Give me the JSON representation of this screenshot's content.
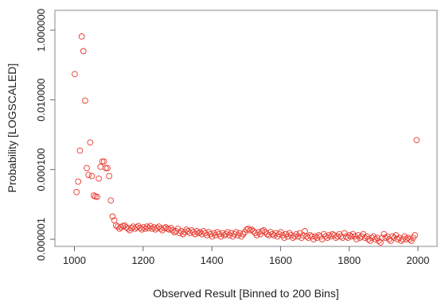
{
  "chart_data": {
    "type": "scatter",
    "title": "",
    "xlabel": "Observed Result [Binned to 200 Bins]",
    "ylabel": "Probability [LOGSCALED]",
    "y_scale": "log",
    "xlim": [
      975,
      2010
    ],
    "ylim": [
      7e-07,
      2.0
    ],
    "grid": false,
    "legend": "none",
    "point_color": "#e8382c",
    "marker": "open-circle",
    "x_ticks": [
      1000,
      1200,
      1400,
      1600,
      1800,
      2000
    ],
    "x_tick_labels": [
      "1000",
      "1200",
      "1400",
      "1600",
      "1800",
      "2000"
    ],
    "y_ticks": [
      1e-06,
      0.0001,
      0.01,
      1
    ],
    "y_tick_labels": [
      "0.000001",
      "0.000100",
      "0.010000",
      "1.000000"
    ],
    "points": [
      [
        1001,
        0.055
      ],
      [
        1006,
        2.25e-05
      ],
      [
        1011,
        4.5e-05
      ],
      [
        1016,
        0.00035
      ],
      [
        1021,
        0.66
      ],
      [
        1026,
        0.25
      ],
      [
        1031,
        0.0095
      ],
      [
        1036,
        0.00011
      ],
      [
        1041,
        7e-05
      ],
      [
        1046,
        0.0006
      ],
      [
        1051,
        6.5e-05
      ],
      [
        1056,
        1.8e-05
      ],
      [
        1061,
        1.7e-05
      ],
      [
        1066,
        1.65e-05
      ],
      [
        1071,
        5.5e-05
      ],
      [
        1076,
        0.00012
      ],
      [
        1081,
        0.00017
      ],
      [
        1086,
        0.00017
      ],
      [
        1091,
        0.00011
      ],
      [
        1096,
        0.00011
      ],
      [
        1101,
        6.5e-05
      ],
      [
        1106,
        1.3e-05
      ],
      [
        1111,
        4.5e-06
      ],
      [
        1116,
        3.5e-06
      ],
      [
        1121,
        2.5e-06
      ],
      [
        1126,
        2.3e-06
      ],
      [
        1131,
        2e-06
      ],
      [
        1136,
        2.2e-06
      ],
      [
        1141,
        2.4e-06
      ],
      [
        1146,
        2.5e-06
      ],
      [
        1151,
        2.2e-06
      ],
      [
        1156,
        2e-06
      ],
      [
        1161,
        1.8e-06
      ],
      [
        1166,
        2.1e-06
      ],
      [
        1171,
        2.3e-06
      ],
      [
        1176,
        2e-06
      ],
      [
        1181,
        2.2e-06
      ],
      [
        1186,
        2.4e-06
      ],
      [
        1191,
        2.1e-06
      ],
      [
        1196,
        1.9e-06
      ],
      [
        1201,
        2.2e-06
      ],
      [
        1206,
        2e-06
      ],
      [
        1211,
        2.3e-06
      ],
      [
        1216,
        2.1e-06
      ],
      [
        1221,
        2.4e-06
      ],
      [
        1226,
        2e-06
      ],
      [
        1231,
        2.2e-06
      ],
      [
        1236,
        1.9e-06
      ],
      [
        1241,
        2.1e-06
      ],
      [
        1246,
        2.3e-06
      ],
      [
        1251,
        2e-06
      ],
      [
        1256,
        1.8e-06
      ],
      [
        1261,
        2.1e-06
      ],
      [
        1266,
        2.2e-06
      ],
      [
        1271,
        2e-06
      ],
      [
        1276,
        1.9e-06
      ],
      [
        1281,
        2.1e-06
      ],
      [
        1286,
        1.8e-06
      ],
      [
        1291,
        1.6e-06
      ],
      [
        1296,
        1.7e-06
      ],
      [
        1301,
        2e-06
      ],
      [
        1306,
        1.5e-06
      ],
      [
        1311,
        1.7e-06
      ],
      [
        1316,
        1.4e-06
      ],
      [
        1321,
        1.6e-06
      ],
      [
        1326,
        1.9e-06
      ],
      [
        1331,
        1.7e-06
      ],
      [
        1336,
        1.5e-06
      ],
      [
        1341,
        1.8e-06
      ],
      [
        1346,
        1.6e-06
      ],
      [
        1351,
        1.4e-06
      ],
      [
        1356,
        1.7e-06
      ],
      [
        1361,
        1.5e-06
      ],
      [
        1366,
        1.6e-06
      ],
      [
        1371,
        1.4e-06
      ],
      [
        1376,
        1.7e-06
      ],
      [
        1381,
        1.5e-06
      ],
      [
        1386,
        1.3e-06
      ],
      [
        1391,
        1.6e-06
      ],
      [
        1396,
        1.4e-06
      ],
      [
        1401,
        1.2e-06
      ],
      [
        1406,
        1.5e-06
      ],
      [
        1411,
        1.3e-06
      ],
      [
        1416,
        1.6e-06
      ],
      [
        1421,
        1.4e-06
      ],
      [
        1426,
        1.2e-06
      ],
      [
        1431,
        1.5e-06
      ],
      [
        1436,
        1.3e-06
      ],
      [
        1441,
        1.4e-06
      ],
      [
        1446,
        1.6e-06
      ],
      [
        1451,
        1.3e-06
      ],
      [
        1456,
        1.5e-06
      ],
      [
        1461,
        1.2e-06
      ],
      [
        1466,
        1.4e-06
      ],
      [
        1471,
        1.6e-06
      ],
      [
        1476,
        1.3e-06
      ],
      [
        1481,
        1.5e-06
      ],
      [
        1486,
        1.2e-06
      ],
      [
        1491,
        1.4e-06
      ],
      [
        1496,
        1.6e-06
      ],
      [
        1501,
        1.9e-06
      ],
      [
        1506,
        2e-06
      ],
      [
        1511,
        1.8e-06
      ],
      [
        1516,
        1.9e-06
      ],
      [
        1521,
        1.7e-06
      ],
      [
        1526,
        1.5e-06
      ],
      [
        1531,
        1.3e-06
      ],
      [
        1536,
        1.6e-06
      ],
      [
        1541,
        1.4e-06
      ],
      [
        1546,
        1.7e-06
      ],
      [
        1551,
        1.8e-06
      ],
      [
        1556,
        1.6e-06
      ],
      [
        1561,
        1.4e-06
      ],
      [
        1566,
        1.3e-06
      ],
      [
        1571,
        1.6e-06
      ],
      [
        1576,
        1.4e-06
      ],
      [
        1581,
        1.3e-06
      ],
      [
        1586,
        1.5e-06
      ],
      [
        1591,
        1.2e-06
      ],
      [
        1596,
        1.4e-06
      ],
      [
        1601,
        1.6e-06
      ],
      [
        1606,
        1.3e-06
      ],
      [
        1611,
        1.1e-06
      ],
      [
        1616,
        1.4e-06
      ],
      [
        1621,
        1.2e-06
      ],
      [
        1626,
        1.5e-06
      ],
      [
        1631,
        1.3e-06
      ],
      [
        1636,
        1.1e-06
      ],
      [
        1641,
        1.2e-06
      ],
      [
        1646,
        1.4e-06
      ],
      [
        1651,
        1.2e-06
      ],
      [
        1656,
        1.5e-06
      ],
      [
        1661,
        1.1e-06
      ],
      [
        1666,
        1.3e-06
      ],
      [
        1671,
        1.7e-06
      ],
      [
        1676,
        1.2e-06
      ],
      [
        1681,
        1.1e-06
      ],
      [
        1686,
        1.3e-06
      ],
      [
        1691,
        1.2e-06
      ],
      [
        1696,
        1e-06
      ],
      [
        1701,
        1.2e-06
      ],
      [
        1706,
        1.1e-06
      ],
      [
        1711,
        1.3e-06
      ],
      [
        1716,
        1.2e-06
      ],
      [
        1721,
        1e-06
      ],
      [
        1726,
        1.4e-06
      ],
      [
        1731,
        1.2e-06
      ],
      [
        1736,
        1.1e-06
      ],
      [
        1741,
        1.3e-06
      ],
      [
        1746,
        1.2e-06
      ],
      [
        1751,
        1.4e-06
      ],
      [
        1756,
        1.3e-06
      ],
      [
        1761,
        1.1e-06
      ],
      [
        1766,
        1.2e-06
      ],
      [
        1771,
        1.4e-06
      ],
      [
        1776,
        1.2e-06
      ],
      [
        1781,
        1.1e-06
      ],
      [
        1786,
        1.5e-06
      ],
      [
        1791,
        1.2e-06
      ],
      [
        1796,
        1.1e-06
      ],
      [
        1801,
        1.3e-06
      ],
      [
        1806,
        1.2e-06
      ],
      [
        1811,
        1.4e-06
      ],
      [
        1816,
        1.2e-06
      ],
      [
        1821,
        1e-06
      ],
      [
        1826,
        1.3e-06
      ],
      [
        1831,
        1.1e-06
      ],
      [
        1836,
        1.2e-06
      ],
      [
        1841,
        1.4e-06
      ],
      [
        1846,
        1.1e-06
      ],
      [
        1851,
        1.2e-06
      ],
      [
        1856,
        1e-06
      ],
      [
        1861,
        9e-07
      ],
      [
        1866,
        1.1e-06
      ],
      [
        1871,
        1.2e-06
      ],
      [
        1876,
        1e-06
      ],
      [
        1881,
        1.1e-06
      ],
      [
        1886,
        9e-07
      ],
      [
        1891,
        8e-07
      ],
      [
        1896,
        1.1e-06
      ],
      [
        1901,
        1.4e-06
      ],
      [
        1906,
        1.1e-06
      ],
      [
        1911,
        1.2e-06
      ],
      [
        1916,
        1e-06
      ],
      [
        1921,
        9e-07
      ],
      [
        1926,
        1.2e-06
      ],
      [
        1931,
        1.1e-06
      ],
      [
        1936,
        1.3e-06
      ],
      [
        1941,
        1e-06
      ],
      [
        1946,
        1.1e-06
      ],
      [
        1951,
        9e-07
      ],
      [
        1956,
        1e-06
      ],
      [
        1961,
        1.2e-06
      ],
      [
        1966,
        1e-06
      ],
      [
        1971,
        1.1e-06
      ],
      [
        1976,
        1e-06
      ],
      [
        1981,
        9e-07
      ],
      [
        1986,
        1.1e-06
      ],
      [
        1991,
        1.3e-06
      ],
      [
        1996,
        0.0007
      ]
    ]
  }
}
